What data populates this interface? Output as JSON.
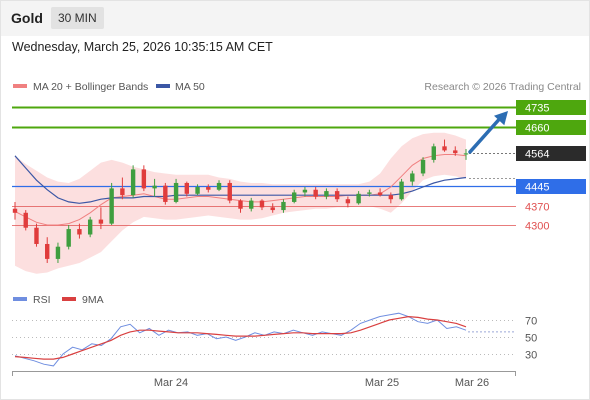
{
  "header": {
    "instrument": "Gold",
    "timeframe": "30 MIN",
    "datetime": "Wednesday, March 25, 2026 10:35:15 AM CET"
  },
  "legend": {
    "ma20_label": "MA 20 + Bollinger Bands",
    "ma50_label": "MA 50",
    "credit": "Research © 2026 Trading Central"
  },
  "rsi_legend": {
    "rsi_label": "RSI",
    "ma_label": "9MA"
  },
  "colors": {
    "up": "#3f9e3f",
    "down": "#e03c3c",
    "resistance": "#4ea70e",
    "support_strong": "#2f6ee8",
    "support": "#e05050",
    "target_arrow": "#2c6db3",
    "bb_fill": "#fbd9d9",
    "ma20": "#f08080",
    "ma50": "#3b57a5",
    "rsi": "#6f8ee0",
    "rsi_ma": "#d94040",
    "current_price_bg": "#2b2b2b"
  },
  "chart_data": [
    {
      "type": "candlestick",
      "title": "Gold",
      "timeframe": "30 MIN",
      "x_ticks": [
        "Mar 24",
        "Mar 25",
        "Mar 26"
      ],
      "ylim": [
        4120,
        4800
      ],
      "current_price": 4564,
      "levels": [
        {
          "label": "4735",
          "value": 4735,
          "kind": "resistance"
        },
        {
          "label": "4660",
          "value": 4660,
          "kind": "resistance"
        },
        {
          "label": "4564",
          "value": 4564,
          "kind": "current"
        },
        {
          "label": "4445",
          "value": 4445,
          "kind": "support_key"
        },
        {
          "label": "4370",
          "value": 4370,
          "kind": "support"
        },
        {
          "label": "4300",
          "value": 4300,
          "kind": "support"
        }
      ],
      "target": {
        "from": 4562,
        "to": 4735
      },
      "series": [
        {
          "name": "MA 20 + Bollinger Bands",
          "values": [
            4350,
            4330,
            4310,
            4300,
            4300,
            4305,
            4320,
            4345,
            4375,
            4400,
            4405,
            4410,
            4415,
            4405,
            4395,
            4395,
            4400,
            4405,
            4405,
            4400,
            4395,
            4390,
            4385,
            4385,
            4390,
            4395,
            4400,
            4405,
            4405,
            4405,
            4405,
            4410,
            4410,
            4410,
            4415,
            4440,
            4480,
            4520,
            4545,
            4555,
            4560,
            4560,
            4555
          ]
        },
        {
          "name": "MA 50",
          "values": [
            4555,
            4510,
            4465,
            4430,
            4400,
            4385,
            4380,
            4385,
            4395,
            4400,
            4400,
            4400,
            4405,
            4405,
            4405,
            4410,
            4410,
            4410,
            4410,
            4410,
            4410,
            4410,
            4410,
            4410,
            4410,
            4410,
            4410,
            4410,
            4410,
            4410,
            4410,
            4410,
            4410,
            4410,
            4410,
            4410,
            4415,
            4425,
            4440,
            4455,
            4465,
            4470,
            4475
          ]
        }
      ],
      "bollinger": {
        "upper": [
          4555,
          4525,
          4500,
          4475,
          4460,
          4455,
          4470,
          4500,
          4530,
          4540,
          4530,
          4515,
          4505,
          4495,
          4490,
          4485,
          4485,
          4485,
          4485,
          4475,
          4470,
          4460,
          4455,
          4455,
          4450,
          4450,
          4450,
          4450,
          4450,
          4450,
          4450,
          4450,
          4450,
          4460,
          4490,
          4545,
          4590,
          4620,
          4635,
          4640,
          4640,
          4630,
          4615
        ],
        "lower": [
          4150,
          4130,
          4120,
          4125,
          4140,
          4150,
          4160,
          4180,
          4200,
          4240,
          4280,
          4310,
          4330,
          4325,
          4320,
          4320,
          4325,
          4330,
          4335,
          4330,
          4325,
          4320,
          4320,
          4325,
          4335,
          4345,
          4350,
          4355,
          4360,
          4360,
          4365,
          4365,
          4370,
          4370,
          4360,
          4345,
          4380,
          4425,
          4465,
          4480,
          4485,
          4480,
          4470
        ]
      },
      "candles": [
        [
          4360,
          4385,
          4320,
          4345
        ],
        [
          4345,
          4355,
          4280,
          4290
        ],
        [
          4290,
          4305,
          4220,
          4230
        ],
        [
          4230,
          4255,
          4160,
          4175
        ],
        [
          4175,
          4235,
          4160,
          4220
        ],
        [
          4220,
          4300,
          4210,
          4285
        ],
        [
          4285,
          4305,
          4250,
          4265
        ],
        [
          4265,
          4330,
          4255,
          4320
        ],
        [
          4320,
          4365,
          4285,
          4305
        ],
        [
          4305,
          4455,
          4300,
          4435
        ],
        [
          4435,
          4475,
          4395,
          4410
        ],
        [
          4410,
          4520,
          4400,
          4505
        ],
        [
          4505,
          4520,
          4425,
          4435
        ],
        [
          4435,
          4470,
          4405,
          4445
        ],
        [
          4445,
          4455,
          4375,
          4385
        ],
        [
          4385,
          4470,
          4380,
          4455
        ],
        [
          4455,
          4460,
          4405,
          4415
        ],
        [
          4415,
          4450,
          4410,
          4440
        ],
        [
          4440,
          4450,
          4420,
          4430
        ],
        [
          4430,
          4465,
          4425,
          4455
        ],
        [
          4455,
          4465,
          4380,
          4390
        ],
        [
          4390,
          4395,
          4345,
          4360
        ],
        [
          4360,
          4400,
          4350,
          4390
        ],
        [
          4390,
          4395,
          4355,
          4365
        ],
        [
          4365,
          4380,
          4345,
          4355
        ],
        [
          4355,
          4395,
          4345,
          4385
        ],
        [
          4385,
          4430,
          4380,
          4420
        ],
        [
          4420,
          4440,
          4405,
          4430
        ],
        [
          4430,
          4440,
          4395,
          4405
        ],
        [
          4405,
          4435,
          4395,
          4425
        ],
        [
          4425,
          4435,
          4385,
          4395
        ],
        [
          4395,
          4405,
          4365,
          4380
        ],
        [
          4380,
          4425,
          4375,
          4415
        ],
        [
          4415,
          4430,
          4405,
          4420
        ],
        [
          4420,
          4435,
          4405,
          4410
        ],
        [
          4410,
          4420,
          4380,
          4395
        ],
        [
          4395,
          4470,
          4390,
          4460
        ],
        [
          4460,
          4500,
          4445,
          4490
        ],
        [
          4490,
          4550,
          4480,
          4540
        ],
        [
          4540,
          4600,
          4530,
          4590
        ],
        [
          4590,
          4615,
          4570,
          4575
        ],
        [
          4575,
          4590,
          4555,
          4565
        ],
        [
          4560,
          4580,
          4540,
          4564
        ]
      ]
    },
    {
      "type": "line",
      "title": "RSI",
      "y_ticks": [
        70,
        50,
        30
      ],
      "ylim": [
        10,
        85
      ],
      "series": [
        {
          "name": "RSI",
          "values": [
            28,
            25,
            22,
            18,
            16,
            30,
            38,
            35,
            42,
            40,
            48,
            62,
            65,
            55,
            60,
            52,
            58,
            55,
            56,
            52,
            54,
            48,
            50,
            46,
            50,
            55,
            52,
            56,
            54,
            58,
            55,
            52,
            56,
            54,
            52,
            58,
            66,
            70,
            74,
            76,
            78,
            74,
            68,
            66,
            70,
            60,
            62,
            58
          ]
        },
        {
          "name": "9MA",
          "values": [
            27,
            26,
            25,
            24,
            24,
            26,
            30,
            34,
            38,
            42,
            46,
            52,
            56,
            58,
            58,
            57,
            56,
            55,
            55,
            55,
            54,
            53,
            52,
            51,
            51,
            51,
            52,
            53,
            54,
            55,
            55,
            54,
            54,
            54,
            54,
            55,
            58,
            62,
            66,
            70,
            72,
            74,
            73,
            71,
            70,
            68,
            66,
            62
          ]
        }
      ]
    }
  ]
}
